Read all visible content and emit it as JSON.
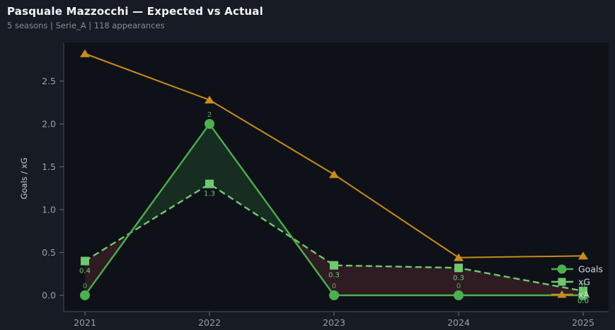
{
  "header": {
    "title": "Pasquale Mazzocchi — Expected vs Actual",
    "subtitle": "5 seasons | Serie_A | 118 appearances"
  },
  "colors": {
    "page_bg": "#171b23",
    "plot_bg": "#0e1118",
    "spine": "#3e4450",
    "tick": "#5a606b",
    "tick_label": "#99a0aa",
    "axis_title": "#c6cbd3",
    "legend_text": "#d6dade",
    "fill_goals_above_xg": "rgba(80,190,85,0.16)",
    "fill_xg_above_goals": "rgba(215,85,85,0.16)"
  },
  "chart_data": {
    "type": "line",
    "title": "Pasquale Mazzocchi — Expected vs Actual",
    "subtitle": "5 seasons | Serie_A | 118 appearances",
    "x": [
      2021,
      2022,
      2023,
      2024,
      2025
    ],
    "xtick_labels": [
      "2021",
      "2022",
      "2023",
      "2024",
      "2025"
    ],
    "xlabel": "",
    "ylabel": "Goals / xG",
    "ylim": [
      -0.19,
      2.95
    ],
    "yticks": [
      0.0,
      0.5,
      1.0,
      1.5,
      2.0,
      2.5
    ],
    "ytick_labels": [
      "0.0",
      "0.5",
      "1.0",
      "1.5",
      "2.0",
      "2.5"
    ],
    "grid": false,
    "legend_position": "lower right",
    "series": [
      {
        "name": "Goals",
        "values": [
          0,
          2,
          0,
          0,
          0
        ],
        "point_labels": [
          "0",
          "2",
          "0",
          "0",
          "0"
        ],
        "label_color": "#55a855",
        "color": "#4caf50",
        "marker": "circle",
        "line_style": "solid"
      },
      {
        "name": "xG",
        "values": [
          0.4,
          1.3,
          0.35,
          0.32,
          0.05
        ],
        "point_labels": [
          "0.4",
          "1.3",
          "0.3",
          "0.3",
          "0.0"
        ],
        "label_color": "#79c979",
        "color": "#6fc76f",
        "marker": "square",
        "line_style": "dashed"
      },
      {
        "name": "xA",
        "values": [
          2.82,
          2.28,
          1.41,
          0.44,
          0.46
        ],
        "point_labels": [],
        "label_color": "#c98a1e",
        "color": "#c98a1e",
        "marker": "triangle",
        "line_style": "solid"
      }
    ],
    "fill_between": "green shading where Goals > xG, red shading where xG > Goals"
  }
}
